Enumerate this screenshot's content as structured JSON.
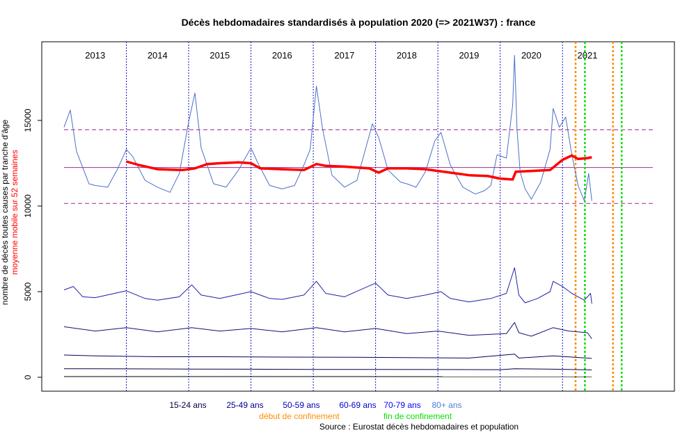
{
  "chart_data": {
    "type": "line",
    "title": "Décès hebdomadaires standardisés à population 2020 (=> 2021W37) : france",
    "ylabel_main": "nombre de décès toutes causes par tranche d'âge",
    "ylabel_sub": "moyenne mobile sur 52 semaines",
    "source": "Source : Eurostat décès hebdomadaires et population",
    "ylim": [
      -1200,
      19200
    ],
    "y_ticks": [
      0,
      5000,
      10000,
      15000
    ],
    "x_range": [
      2012.5,
      2021.95
    ],
    "years": [
      {
        "label": "2013",
        "x": 2013.0
      },
      {
        "label": "2014",
        "x": 2014.0
      },
      {
        "label": "2015",
        "x": 2015.0
      },
      {
        "label": "2016",
        "x": 2016.0
      },
      {
        "label": "2017",
        "x": 2017.0
      },
      {
        "label": "2018",
        "x": 2018.0
      },
      {
        "label": "2019",
        "x": 2019.0
      },
      {
        "label": "2020",
        "x": 2020.0
      },
      {
        "label": "2021",
        "x": 2020.9
      }
    ],
    "year_boundaries": [
      2013.5,
      2014.5,
      2015.5,
      2016.5,
      2017.5,
      2018.5,
      2019.5,
      2020.5
    ],
    "reference_lines": {
      "mean": 12250,
      "upper": 14450,
      "lower": 10150
    },
    "confinement_starts": [
      2020.71,
      2021.31
    ],
    "confinement_ends": [
      2020.86,
      2021.45
    ],
    "series": [
      {
        "name": "80+ ans",
        "color": "#4a6fc8",
        "points": [
          [
            2012.5,
            14600
          ],
          [
            2012.6,
            15600
          ],
          [
            2012.7,
            13200
          ],
          [
            2012.9,
            11300
          ],
          [
            2013.0,
            11200
          ],
          [
            2013.2,
            11100
          ],
          [
            2013.35,
            12100
          ],
          [
            2013.5,
            13300
          ],
          [
            2013.6,
            12900
          ],
          [
            2013.8,
            11500
          ],
          [
            2014.0,
            11100
          ],
          [
            2014.2,
            10800
          ],
          [
            2014.35,
            11900
          ],
          [
            2014.5,
            14900
          ],
          [
            2014.6,
            16600
          ],
          [
            2014.7,
            13400
          ],
          [
            2014.9,
            11300
          ],
          [
            2015.1,
            11100
          ],
          [
            2015.3,
            12100
          ],
          [
            2015.5,
            13400
          ],
          [
            2015.6,
            12600
          ],
          [
            2015.8,
            11200
          ],
          [
            2016.0,
            11000
          ],
          [
            2016.2,
            11200
          ],
          [
            2016.35,
            12400
          ],
          [
            2016.45,
            13300
          ],
          [
            2016.55,
            17000
          ],
          [
            2016.65,
            14500
          ],
          [
            2016.8,
            11800
          ],
          [
            2017.0,
            11100
          ],
          [
            2017.2,
            11500
          ],
          [
            2017.45,
            14800
          ],
          [
            2017.55,
            14000
          ],
          [
            2017.7,
            12100
          ],
          [
            2017.9,
            11400
          ],
          [
            2018.0,
            11300
          ],
          [
            2018.15,
            11100
          ],
          [
            2018.3,
            12000
          ],
          [
            2018.45,
            13800
          ],
          [
            2018.55,
            14300
          ],
          [
            2018.7,
            12400
          ],
          [
            2018.9,
            11100
          ],
          [
            2019.1,
            10700
          ],
          [
            2019.25,
            10900
          ],
          [
            2019.35,
            11200
          ],
          [
            2019.45,
            13000
          ],
          [
            2019.6,
            12800
          ],
          [
            2019.7,
            15900
          ],
          [
            2019.73,
            18800
          ],
          [
            2019.77,
            14500
          ],
          [
            2019.82,
            12000
          ],
          [
            2019.9,
            11000
          ],
          [
            2020.0,
            10400
          ],
          [
            2020.15,
            11400
          ],
          [
            2020.3,
            13300
          ],
          [
            2020.35,
            15700
          ],
          [
            2020.45,
            14600
          ],
          [
            2020.55,
            15200
          ],
          [
            2020.65,
            13000
          ],
          [
            2020.75,
            11200
          ],
          [
            2020.85,
            10300
          ],
          [
            2020.92,
            11900
          ],
          [
            2020.97,
            10300
          ]
        ]
      },
      {
        "name": "70-79 ans",
        "color": "#1f1fa8",
        "points": [
          [
            2012.5,
            5100
          ],
          [
            2012.65,
            5300
          ],
          [
            2012.8,
            4700
          ],
          [
            2013.0,
            4650
          ],
          [
            2013.5,
            5050
          ],
          [
            2013.8,
            4600
          ],
          [
            2014.0,
            4500
          ],
          [
            2014.35,
            4700
          ],
          [
            2014.55,
            5400
          ],
          [
            2014.7,
            4800
          ],
          [
            2015.0,
            4600
          ],
          [
            2015.5,
            5000
          ],
          [
            2015.8,
            4600
          ],
          [
            2016.0,
            4550
          ],
          [
            2016.35,
            4800
          ],
          [
            2016.55,
            5600
          ],
          [
            2016.7,
            4900
          ],
          [
            2017.0,
            4700
          ],
          [
            2017.5,
            5500
          ],
          [
            2017.7,
            4800
          ],
          [
            2018.0,
            4600
          ],
          [
            2018.3,
            4800
          ],
          [
            2018.55,
            5000
          ],
          [
            2018.7,
            4600
          ],
          [
            2019.0,
            4400
          ],
          [
            2019.35,
            4600
          ],
          [
            2019.6,
            4900
          ],
          [
            2019.73,
            6400
          ],
          [
            2019.8,
            4800
          ],
          [
            2019.9,
            4350
          ],
          [
            2020.1,
            4600
          ],
          [
            2020.3,
            5000
          ],
          [
            2020.35,
            5600
          ],
          [
            2020.5,
            5300
          ],
          [
            2020.65,
            4900
          ],
          [
            2020.75,
            4700
          ],
          [
            2020.85,
            4500
          ],
          [
            2020.95,
            4900
          ],
          [
            2020.97,
            4300
          ]
        ]
      },
      {
        "name": "60-69 ans",
        "color": "#10107a",
        "points": [
          [
            2012.5,
            2950
          ],
          [
            2012.8,
            2800
          ],
          [
            2013.0,
            2700
          ],
          [
            2013.5,
            2900
          ],
          [
            2014.0,
            2650
          ],
          [
            2014.55,
            2900
          ],
          [
            2015.0,
            2700
          ],
          [
            2015.5,
            2850
          ],
          [
            2016.0,
            2650
          ],
          [
            2016.55,
            2900
          ],
          [
            2017.0,
            2650
          ],
          [
            2017.5,
            2850
          ],
          [
            2018.0,
            2550
          ],
          [
            2018.5,
            2700
          ],
          [
            2019.0,
            2450
          ],
          [
            2019.6,
            2550
          ],
          [
            2019.73,
            3200
          ],
          [
            2019.8,
            2600
          ],
          [
            2020.0,
            2400
          ],
          [
            2020.35,
            2900
          ],
          [
            2020.6,
            2700
          ],
          [
            2020.9,
            2600
          ],
          [
            2020.97,
            2250
          ]
        ]
      },
      {
        "name": "50-59 ans",
        "color": "#000060",
        "points": [
          [
            2012.5,
            1300
          ],
          [
            2013.0,
            1250
          ],
          [
            2014.0,
            1200
          ],
          [
            2015.0,
            1200
          ],
          [
            2016.0,
            1180
          ],
          [
            2017.0,
            1170
          ],
          [
            2018.0,
            1150
          ],
          [
            2019.0,
            1120
          ],
          [
            2019.73,
            1350
          ],
          [
            2019.8,
            1120
          ],
          [
            2020.35,
            1250
          ],
          [
            2020.97,
            1100
          ]
        ]
      },
      {
        "name": "25-49 ans",
        "color": "#000040",
        "points": [
          [
            2012.5,
            500
          ],
          [
            2013.5,
            490
          ],
          [
            2014.5,
            480
          ],
          [
            2015.5,
            470
          ],
          [
            2016.5,
            460
          ],
          [
            2017.5,
            455
          ],
          [
            2018.5,
            450
          ],
          [
            2019.5,
            445
          ],
          [
            2019.73,
            500
          ],
          [
            2020.35,
            470
          ],
          [
            2020.97,
            430
          ]
        ]
      },
      {
        "name": "15-24 ans",
        "color": "#000000",
        "points": [
          [
            2012.5,
            40
          ],
          [
            2020.97,
            35
          ]
        ]
      },
      {
        "name": "moyenne mobile sur 52 semaines",
        "color": "#ff0000",
        "points": [
          [
            2013.5,
            12600
          ],
          [
            2013.7,
            12400
          ],
          [
            2014.0,
            12150
          ],
          [
            2014.4,
            12100
          ],
          [
            2014.6,
            12200
          ],
          [
            2014.8,
            12450
          ],
          [
            2015.0,
            12500
          ],
          [
            2015.3,
            12550
          ],
          [
            2015.5,
            12500
          ],
          [
            2015.65,
            12200
          ],
          [
            2016.0,
            12150
          ],
          [
            2016.35,
            12100
          ],
          [
            2016.55,
            12450
          ],
          [
            2016.7,
            12350
          ],
          [
            2017.0,
            12300
          ],
          [
            2017.4,
            12200
          ],
          [
            2017.55,
            11950
          ],
          [
            2017.7,
            12200
          ],
          [
            2018.0,
            12200
          ],
          [
            2018.3,
            12150
          ],
          [
            2018.5,
            12050
          ],
          [
            2018.7,
            11950
          ],
          [
            2019.0,
            11800
          ],
          [
            2019.3,
            11750
          ],
          [
            2019.5,
            11600
          ],
          [
            2019.7,
            11550
          ],
          [
            2019.75,
            12000
          ],
          [
            2020.0,
            12050
          ],
          [
            2020.3,
            12100
          ],
          [
            2020.5,
            12700
          ],
          [
            2020.65,
            12950
          ],
          [
            2020.75,
            12750
          ],
          [
            2020.9,
            12800
          ],
          [
            2020.97,
            12850
          ]
        ]
      }
    ],
    "legend_ages": [
      {
        "label": "15-24 ans",
        "color": "#000040"
      },
      {
        "label": "25-49 ans",
        "color": "#00008b"
      },
      {
        "label": "50-59 ans",
        "color": "#0000b4"
      },
      {
        "label": "60-69 ans",
        "color": "#0000d2"
      },
      {
        "label": "70-79 ans",
        "color": "#0000ff"
      },
      {
        "label": "80+ ans",
        "color": "#4a7fe0"
      }
    ],
    "legend_start": {
      "label": "début de confinement",
      "color": "#ff8c00"
    },
    "legend_end": {
      "label": "fin de confinement",
      "color": "#00e000"
    }
  }
}
